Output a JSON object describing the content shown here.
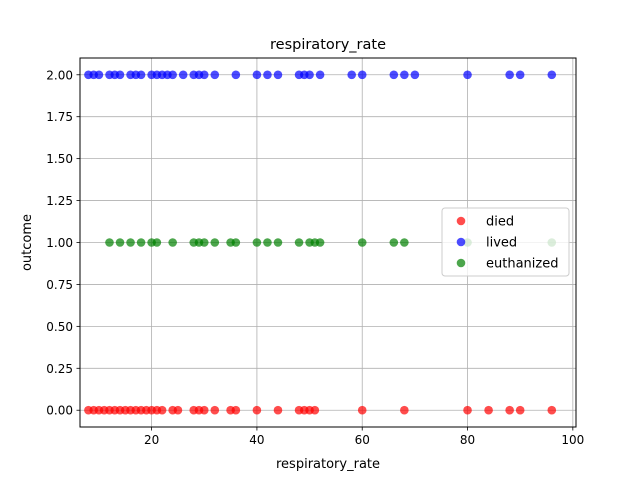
{
  "chart_data": {
    "type": "scatter",
    "title": "respiratory_rate",
    "xlabel": "respiratory_rate",
    "ylabel": "outcome",
    "xlim": [
      6.4,
      100.6
    ],
    "ylim": [
      -0.1,
      2.1
    ],
    "xticks": [
      20,
      40,
      60,
      80,
      100
    ],
    "yticks": [
      0.0,
      0.25,
      0.5,
      0.75,
      1.0,
      1.25,
      1.5,
      1.75,
      2.0
    ],
    "ytick_labels": [
      "0.00",
      "0.25",
      "0.50",
      "0.75",
      "1.00",
      "1.25",
      "1.50",
      "1.75",
      "2.00"
    ],
    "grid": true,
    "legend_position": "center-right",
    "series": [
      {
        "name": "died",
        "color": "#ff0000",
        "y": 0,
        "x": [
          8,
          9,
          10,
          11,
          12,
          13,
          14,
          15,
          16,
          17,
          18,
          19,
          20,
          21,
          22,
          24,
          25,
          28,
          29,
          30,
          32,
          35,
          36,
          40,
          44,
          48,
          49,
          50,
          51,
          60,
          68,
          80,
          84,
          88,
          90,
          96
        ]
      },
      {
        "name": "lived",
        "color": "#0000ff",
        "y": 2,
        "x": [
          8,
          9,
          10,
          12,
          13,
          14,
          16,
          17,
          18,
          20,
          21,
          22,
          23,
          24,
          26,
          28,
          29,
          30,
          32,
          36,
          40,
          42,
          44,
          48,
          49,
          50,
          52,
          58,
          60,
          66,
          68,
          70,
          80,
          88,
          90,
          96
        ]
      },
      {
        "name": "euthanized",
        "color": "#008000",
        "y": 1,
        "x": [
          12,
          14,
          16,
          18,
          20,
          21,
          24,
          28,
          29,
          30,
          32,
          35,
          36,
          40,
          42,
          44,
          48,
          50,
          51,
          52,
          60,
          66,
          68,
          80,
          96
        ]
      }
    ]
  }
}
